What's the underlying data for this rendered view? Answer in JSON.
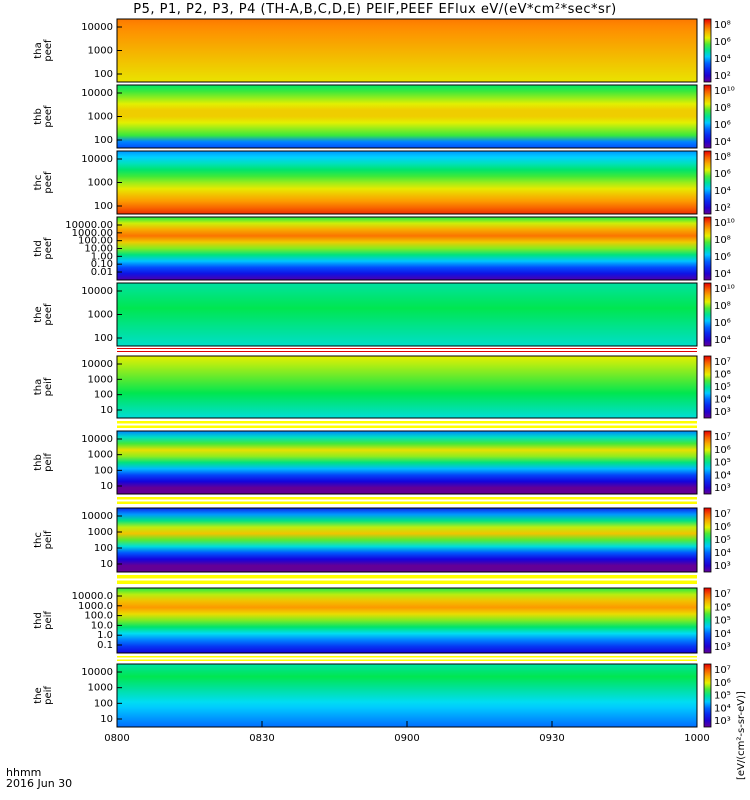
{
  "title": "P5, P1, P2, P3, P4 (TH-A,B,C,D,E) PEIF,PEEF EFlux eV/(eV*cm²*sec*sr)",
  "footer": {
    "hhmm_label": "hhmm",
    "date_label": "2016 Jun 30"
  },
  "colorbar_unit": "[eV/(cm²-s-sr-eV)]",
  "chart_data": {
    "type": "heatmap",
    "x_axis": {
      "ticks": [
        "0800",
        "0830",
        "0900",
        "0930",
        "1000"
      ],
      "range": [
        "08:00",
        "10:00"
      ]
    },
    "colormap": "rainbow (purple-blue-cyan-green-yellow-red)",
    "panels": [
      {
        "id": "tha-peef",
        "label_lines": [
          "tha",
          "peef"
        ],
        "yticks": [
          "10000",
          "1000",
          "100"
        ],
        "colorbar_ticks": [
          "10⁸",
          "10⁶",
          "10⁴",
          "10²"
        ]
      },
      {
        "id": "thb-peef",
        "label_lines": [
          "thb",
          "peef"
        ],
        "yticks": [
          "10000",
          "1000",
          "100"
        ],
        "colorbar_ticks": [
          "10¹⁰",
          "10⁸",
          "10⁶",
          "10⁴"
        ]
      },
      {
        "id": "thc-peef",
        "label_lines": [
          "thc",
          "peef"
        ],
        "yticks": [
          "10000",
          "1000",
          "100"
        ],
        "colorbar_ticks": [
          "10⁸",
          "10⁶",
          "10⁴",
          "10²"
        ]
      },
      {
        "id": "thd-peef",
        "label_lines": [
          "thd",
          "peef"
        ],
        "yticks": [
          "10000.00",
          "1000.00",
          "100.00",
          "10.00",
          "1.00",
          "0.10",
          "0.01"
        ],
        "colorbar_ticks": [
          "10¹⁰",
          "10⁸",
          "10⁶",
          "10⁴"
        ]
      },
      {
        "id": "the-peef",
        "label_lines": [
          "the",
          "peef"
        ],
        "yticks": [
          "10000",
          "1000",
          "100"
        ],
        "colorbar_ticks": [
          "10¹⁰",
          "10⁸",
          "10⁶",
          "10⁴"
        ]
      },
      {
        "id": "tha-peif",
        "label_lines": [
          "tha",
          "peif"
        ],
        "yticks": [
          "10000",
          "1000",
          "100",
          "10"
        ],
        "colorbar_ticks": [
          "10⁷",
          "10⁶",
          "10⁵",
          "10⁴",
          "10³"
        ]
      },
      {
        "id": "thb-peif",
        "label_lines": [
          "thb",
          "peif"
        ],
        "yticks": [
          "10000",
          "1000",
          "100",
          "10"
        ],
        "colorbar_ticks": [
          "10⁷",
          "10⁶",
          "10⁵",
          "10⁴",
          "10³"
        ]
      },
      {
        "id": "thc-peif",
        "label_lines": [
          "thc",
          "peif"
        ],
        "yticks": [
          "10000",
          "1000",
          "100",
          "10"
        ],
        "colorbar_ticks": [
          "10⁷",
          "10⁶",
          "10⁵",
          "10⁴",
          "10³"
        ]
      },
      {
        "id": "thd-peif",
        "label_lines": [
          "thd",
          "peif"
        ],
        "yticks": [
          "10000.0",
          "1000.0",
          "100.0",
          "10.0",
          "1.0",
          "0.1"
        ],
        "colorbar_ticks": [
          "10⁷",
          "10⁶",
          "10⁵",
          "10⁴",
          "10³"
        ]
      },
      {
        "id": "the-peif",
        "label_lines": [
          "the",
          "peif"
        ],
        "yticks": [
          "10000",
          "1000",
          "100",
          "10"
        ],
        "colorbar_ticks": [
          "10⁷",
          "10⁶",
          "10⁵",
          "10⁴",
          "10³"
        ]
      }
    ]
  }
}
